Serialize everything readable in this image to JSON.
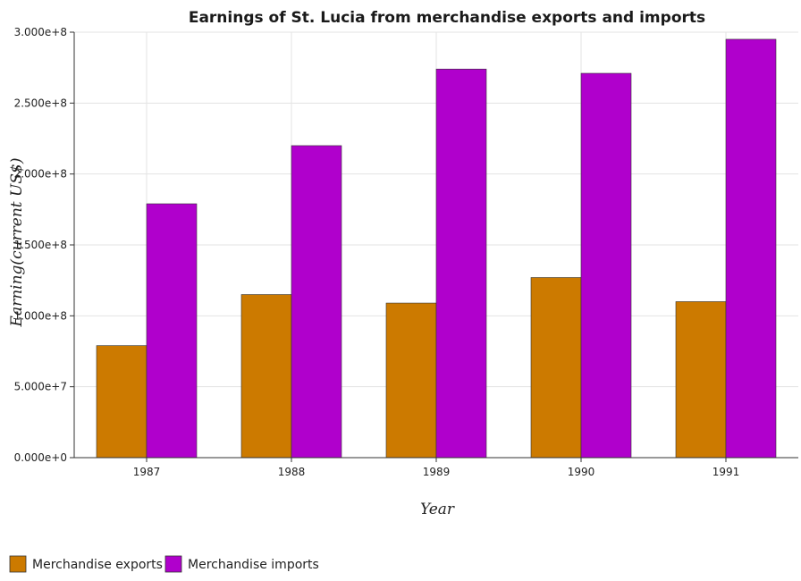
{
  "chart_data": {
    "type": "bar",
    "title": "Earnings of St. Lucia from merchandise exports and imports",
    "xlabel": "Year",
    "ylabel": "Earning(current US$)",
    "categories": [
      "1987",
      "1988",
      "1989",
      "1990",
      "1991"
    ],
    "series": [
      {
        "name": "Merchandise exports",
        "color": "#cc7a00",
        "values": [
          79000000,
          115000000,
          109000000,
          127000000,
          110000000
        ]
      },
      {
        "name": "Merchandise imports",
        "color": "#b000cc",
        "values": [
          179000000,
          220000000,
          274000000,
          271000000,
          295000000
        ]
      }
    ],
    "ylim": [
      0,
      300000000
    ],
    "yticks": [
      0,
      50000000,
      100000000,
      150000000,
      200000000,
      250000000,
      300000000
    ],
    "ytick_labels": [
      "0.000e+0",
      "5.000e+7",
      "1.000e+8",
      "1.500e+8",
      "2.000e+8",
      "2.500e+8",
      "3.000e+8"
    ],
    "grid": true,
    "legend_position": "bottom-left"
  }
}
